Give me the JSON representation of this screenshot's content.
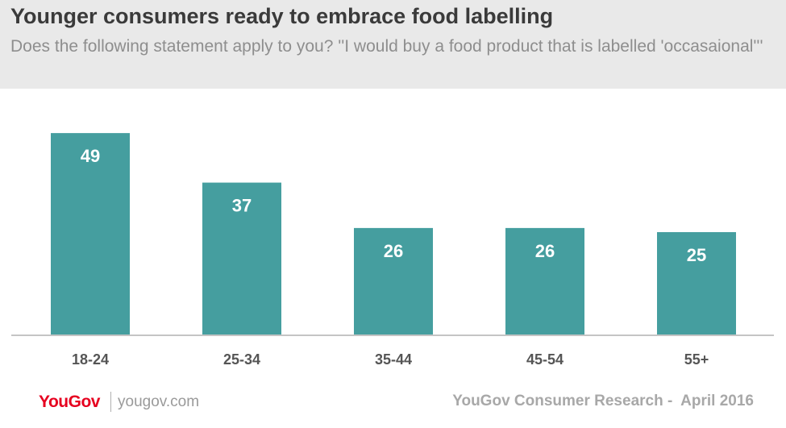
{
  "header": {
    "title": "Younger consumers ready to embrace food labelling",
    "subtitle": "Does the following statement apply to you? ''I would buy a food product that is labelled 'occasaional'''"
  },
  "colors": {
    "bar": "#459e9f",
    "header_bg": "#e9e9e9",
    "brand": "#e6001f"
  },
  "chart_data": {
    "type": "bar",
    "categories": [
      "18-24",
      "25-34",
      "35-44",
      "45-54",
      "55+"
    ],
    "values": [
      49,
      37,
      26,
      26,
      25
    ],
    "title": "Younger consumers ready to embrace food labelling",
    "xlabel": "",
    "ylabel": "",
    "grid": false,
    "data_labels": true
  },
  "footer": {
    "logo": "YouGov",
    "url": "yougov.com",
    "source": "YouGov Consumer Research -  April 2016"
  }
}
